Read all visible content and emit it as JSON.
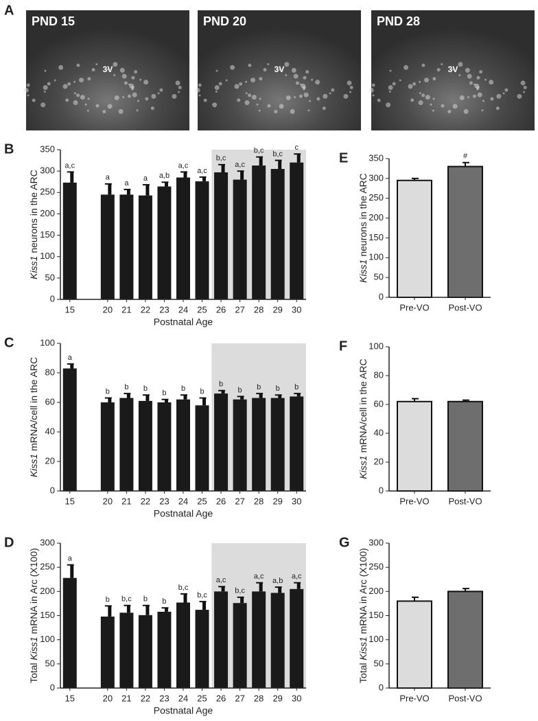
{
  "images": [
    {
      "label": "PND 15",
      "marker": "3V"
    },
    {
      "label": "PND 20",
      "marker": "3V"
    },
    {
      "label": "PND 28",
      "marker": "3V"
    }
  ],
  "image_panel": "A",
  "chart_data": [
    {
      "type": "bar",
      "panel": "B",
      "ylabel_parts": [
        {
          "text": "Kiss1",
          "italic": true
        },
        {
          "text": " neurons in the ARC"
        }
      ],
      "xlabel": "Postnatal Age",
      "categories": [
        "15",
        null,
        "20",
        "21",
        "22",
        "23",
        "24",
        "25",
        "26",
        "27",
        "28",
        "29",
        "30"
      ],
      "values": [
        273,
        null,
        245,
        245,
        243,
        264,
        285,
        276,
        297,
        280,
        313,
        305,
        320
      ],
      "errors": [
        25,
        null,
        25,
        12,
        25,
        10,
        13,
        10,
        18,
        20,
        20,
        20,
        20
      ],
      "annotations": [
        "a,c",
        null,
        "a",
        "a",
        "a",
        "a,b",
        "a,c",
        "a,c",
        "b,c",
        "a,c",
        "b,c",
        "b,c",
        "c"
      ],
      "color": "#1a1a1a",
      "shade": {
        "from": "26",
        "to": "30",
        "color": "#dcdcdc"
      },
      "ylim": [
        0,
        350
      ],
      "yticks": [
        0,
        50,
        100,
        150,
        200,
        250,
        300,
        350
      ]
    },
    {
      "type": "bar",
      "panel": "C",
      "ylabel_parts": [
        {
          "text": "Kiss1",
          "italic": true
        },
        {
          "text": " mRNA/cell in the ARC"
        }
      ],
      "xlabel": "Postnatal Age",
      "categories": [
        "15",
        null,
        "20",
        "21",
        "22",
        "23",
        "24",
        "25",
        "26",
        "27",
        "28",
        "29",
        "30"
      ],
      "values": [
        83,
        null,
        60,
        63,
        61,
        60,
        62,
        58,
        66,
        62,
        63,
        63,
        64
      ],
      "errors": [
        3,
        null,
        3,
        3,
        4,
        2,
        3,
        5,
        2,
        2,
        3,
        2,
        2
      ],
      "annotations": [
        "a",
        null,
        "b",
        "b",
        "b",
        "b",
        "b",
        "b",
        "b",
        "b",
        "b",
        "b",
        "b"
      ],
      "color": "#1a1a1a",
      "shade": {
        "from": "26",
        "to": "30",
        "color": "#dcdcdc"
      },
      "ylim": [
        0,
        100
      ],
      "yticks": [
        0,
        20,
        40,
        60,
        80,
        100
      ]
    },
    {
      "type": "bar",
      "panel": "D",
      "ylabel_parts": [
        {
          "text": "Total "
        },
        {
          "text": "Kiss1",
          "italic": true
        },
        {
          "text": " mRNA in Arc (X100)"
        }
      ],
      "xlabel": "Postnatal Age",
      "categories": [
        "15",
        null,
        "20",
        "21",
        "22",
        "23",
        "24",
        "25",
        "26",
        "27",
        "28",
        "29",
        "30"
      ],
      "values": [
        228,
        null,
        148,
        156,
        151,
        158,
        177,
        162,
        200,
        176,
        200,
        197,
        205
      ],
      "errors": [
        27,
        null,
        22,
        15,
        20,
        8,
        18,
        17,
        10,
        12,
        18,
        12,
        13
      ],
      "annotations": [
        "a",
        null,
        "b",
        "b,c",
        "b",
        "b",
        "b,c",
        "b,c",
        "a,c",
        "b,c",
        "a,c",
        "a,b",
        "a,c"
      ],
      "color": "#1a1a1a",
      "shade": {
        "from": "26",
        "to": "30",
        "color": "#dcdcdc"
      },
      "ylim": [
        0,
        300
      ],
      "yticks": [
        0,
        50,
        100,
        150,
        200,
        250,
        300
      ]
    },
    {
      "type": "bar",
      "panel": "E",
      "ylabel_parts": [
        {
          "text": "Kiss1",
          "italic": true
        },
        {
          "text": " neurons in the ARC"
        }
      ],
      "categories": [
        "Pre-VO",
        "Post-VO"
      ],
      "values": [
        295,
        330
      ],
      "errors": [
        5,
        10
      ],
      "annotations": [
        null,
        "#"
      ],
      "colors": [
        "#dcdcdc",
        "#6e6e6e"
      ],
      "ylim": [
        0,
        350
      ],
      "yticks": [
        0,
        50,
        100,
        150,
        200,
        250,
        300,
        350
      ]
    },
    {
      "type": "bar",
      "panel": "F",
      "ylabel_parts": [
        {
          "text": "Kiss1",
          "italic": true
        },
        {
          "text": " mRNA/cell in the ARC"
        }
      ],
      "categories": [
        "Pre-VO",
        "Post-VO"
      ],
      "values": [
        62,
        62
      ],
      "errors": [
        2,
        1
      ],
      "colors": [
        "#dcdcdc",
        "#6e6e6e"
      ],
      "ylim": [
        0,
        100
      ],
      "yticks": [
        0,
        20,
        40,
        60,
        80,
        100
      ]
    },
    {
      "type": "bar",
      "panel": "G",
      "ylabel_parts": [
        {
          "text": "Total "
        },
        {
          "text": "Kiss1",
          "italic": true
        },
        {
          "text": " mRNA in Arc (X100)"
        }
      ],
      "categories": [
        "Pre-VO",
        "Post-VO"
      ],
      "values": [
        180,
        200
      ],
      "errors": [
        8,
        6
      ],
      "colors": [
        "#dcdcdc",
        "#6e6e6e"
      ],
      "ylim": [
        0,
        300
      ],
      "yticks": [
        0,
        50,
        100,
        150,
        200,
        250,
        300
      ]
    }
  ]
}
